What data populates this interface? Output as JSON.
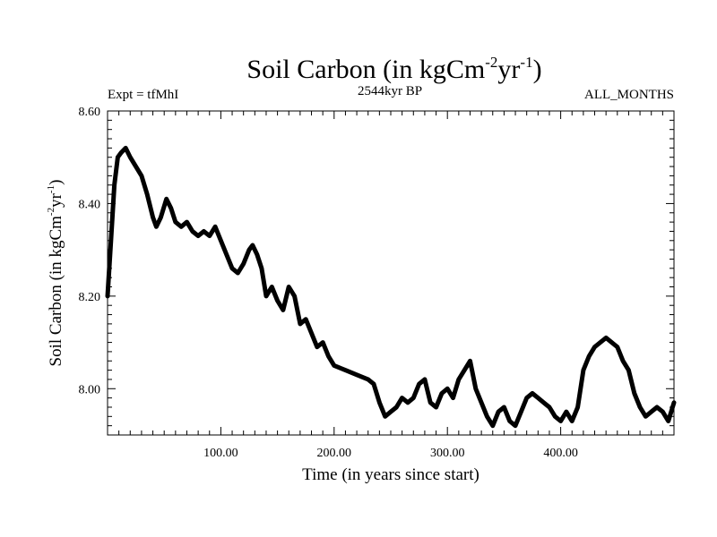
{
  "header": {
    "title_main": "Soil Carbon (in kgCm",
    "title_sup1": "-2",
    "title_mid": "yr",
    "title_sup2": "-1",
    "title_end": ")",
    "expt_label": "Expt = tfMhI",
    "period_label": "2544kyr BP",
    "months_label": "ALL_MONTHS"
  },
  "chart_data": {
    "type": "line",
    "title": "Soil Carbon (in kgCm-2yr-1)",
    "xlabel": "Time (in years since start)",
    "ylabel": "Soil Carbon (in kgCm-2yr-1)",
    "ylabel_parts": {
      "main": "Soil Carbon (in kgCm",
      "sup1": "-2",
      "mid": "yr",
      "sup2": "-1",
      "end": ")"
    },
    "xlim": [
      0,
      500
    ],
    "ylim": [
      7.9,
      8.6
    ],
    "xticks": [
      100,
      200,
      300,
      400
    ],
    "xtick_labels": [
      "100.00",
      "200.00",
      "300.00",
      "400.00"
    ],
    "yticks": [
      8.0,
      8.2,
      8.4,
      8.6
    ],
    "ytick_labels": [
      "8.00",
      "8.20",
      "8.40",
      "8.60"
    ],
    "line_color": "#000000",
    "series": [
      {
        "name": "Soil Carbon",
        "x": [
          0,
          3,
          6,
          9,
          12,
          16,
          20,
          25,
          30,
          35,
          40,
          43,
          47,
          52,
          56,
          60,
          65,
          70,
          75,
          80,
          85,
          90,
          95,
          100,
          105,
          110,
          115,
          120,
          125,
          128,
          132,
          136,
          140,
          145,
          150,
          155,
          160,
          165,
          170,
          175,
          180,
          185,
          190,
          195,
          200,
          210,
          220,
          230,
          235,
          240,
          245,
          250,
          255,
          260,
          265,
          270,
          275,
          280,
          285,
          290,
          295,
          300,
          305,
          310,
          315,
          320,
          325,
          330,
          335,
          340,
          345,
          350,
          355,
          360,
          365,
          370,
          375,
          380,
          385,
          390,
          395,
          400,
          405,
          410,
          415,
          420,
          425,
          430,
          435,
          440,
          445,
          450,
          455,
          460,
          465,
          470,
          475,
          480,
          485,
          490,
          495,
          500
        ],
        "y": [
          8.2,
          8.32,
          8.44,
          8.5,
          8.51,
          8.52,
          8.5,
          8.48,
          8.46,
          8.42,
          8.37,
          8.35,
          8.37,
          8.41,
          8.39,
          8.36,
          8.35,
          8.36,
          8.34,
          8.33,
          8.34,
          8.33,
          8.35,
          8.32,
          8.29,
          8.26,
          8.25,
          8.27,
          8.3,
          8.31,
          8.29,
          8.26,
          8.2,
          8.22,
          8.19,
          8.17,
          8.22,
          8.2,
          8.14,
          8.15,
          8.12,
          8.09,
          8.1,
          8.07,
          8.05,
          8.04,
          8.03,
          8.02,
          8.01,
          7.97,
          7.94,
          7.95,
          7.96,
          7.98,
          7.97,
          7.98,
          8.01,
          8.02,
          7.97,
          7.96,
          7.99,
          8.0,
          7.98,
          8.02,
          8.04,
          8.06,
          8.0,
          7.97,
          7.94,
          7.92,
          7.95,
          7.96,
          7.93,
          7.92,
          7.95,
          7.98,
          7.99,
          7.98,
          7.97,
          7.96,
          7.94,
          7.93,
          7.95,
          7.93,
          7.96,
          8.04,
          8.07,
          8.09,
          8.1,
          8.11,
          8.1,
          8.09,
          8.06,
          8.04,
          7.99,
          7.96,
          7.94,
          7.95,
          7.96,
          7.95,
          7.93,
          7.97
        ]
      }
    ]
  }
}
